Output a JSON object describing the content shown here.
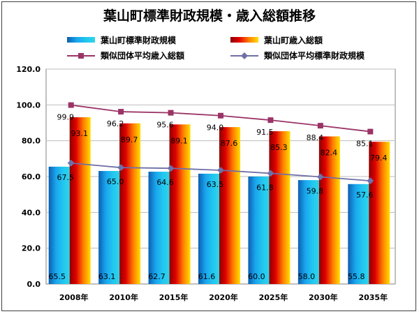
{
  "chart_data": {
    "type": "bar",
    "title": "葉山町標準財政規模・歳入総額推移",
    "categories": [
      "2008年",
      "2010年",
      "2015年",
      "2020年",
      "2025年",
      "2030年",
      "2035年"
    ],
    "ylim": [
      0,
      120
    ],
    "yticks": [
      "0.0",
      "20.0",
      "40.0",
      "60.0",
      "80.0",
      "100.0",
      "120.0"
    ],
    "grid": true,
    "legend_position": "top",
    "series": [
      {
        "name": "葉山町標準財政規模",
        "kind": "bar",
        "color": "#1a9fe0",
        "values": [
          65.5,
          63.1,
          62.7,
          61.6,
          60.0,
          58.0,
          55.8
        ],
        "labels": [
          "65.5",
          "63.1",
          "62.7",
          "61.6",
          "60.0",
          "58.0",
          "55.8"
        ]
      },
      {
        "name": "葉山町歳入総額",
        "kind": "bar",
        "color": "#e53a1a",
        "values": [
          93.1,
          89.7,
          89.1,
          87.6,
          85.3,
          82.4,
          79.4
        ],
        "labels": [
          "93.1",
          "89.7",
          "89.1",
          "87.6",
          "85.3",
          "82.4",
          "79.4"
        ]
      },
      {
        "name": "類似団体平均歳入総額",
        "kind": "line",
        "color": "#9b3366",
        "marker": "square",
        "values": [
          99.9,
          96.2,
          95.6,
          94.0,
          91.5,
          88.4,
          85.1
        ],
        "labels": [
          "99.9",
          "96.2",
          "95.6",
          "94.0",
          "91.5",
          "88.4",
          "85.1"
        ]
      },
      {
        "name": "類似団体平均標準財政規模",
        "kind": "line",
        "color": "#6f6fa8",
        "marker": "diamond",
        "values": [
          67.5,
          65.0,
          64.6,
          63.5,
          61.8,
          59.8,
          57.6
        ],
        "labels": [
          "67.5",
          "65.0",
          "64.6",
          "63.5",
          "61.8",
          "59.8",
          "57.6"
        ]
      }
    ]
  }
}
